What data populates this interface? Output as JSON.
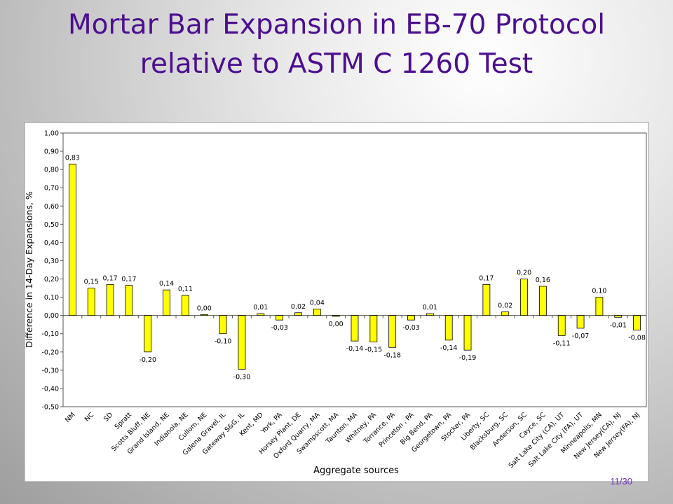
{
  "slide": {
    "title_line1": "Mortar Bar Expansion in EB-70 Protocol",
    "title_line2": "relative to ASTM C 1260 Test",
    "page_number": "11/30"
  },
  "chart_data": {
    "type": "bar",
    "title": "",
    "xlabel": "Aggregate sources",
    "ylabel": "Difference in 14-Day Expansions, %",
    "ylim": [
      -0.5,
      1.0
    ],
    "ytick_step": 0.1,
    "ytick_labels": [
      "-0,50",
      "-0,40",
      "-0,30",
      "-0,20",
      "-0,10",
      "0,00",
      "0,10",
      "0,20",
      "0,30",
      "0,40",
      "0,50",
      "0,60",
      "0,70",
      "0,80",
      "0,90",
      "1,00"
    ],
    "grid": false,
    "legend": "none",
    "bar_color": "#ffff00",
    "categories": [
      "NM",
      "NC",
      "SD",
      "Spratt",
      "Scotts Bluff, NE",
      "Grand Island, NE",
      "Indianola, NE",
      "Cullom, NE",
      "Galena Gravel, IL",
      "Gateway S&G, IL",
      "Kent, MD",
      "York, PA",
      "Horsey Plant, DE",
      "Oxford Quarry, MA",
      "Swampscott, MA",
      "Taunton, MA",
      "Whitney, PA",
      "Torrance, PA",
      "Princeton , PA",
      "Big Bend, PA",
      "Georgetown, PA",
      "Stocker, PA",
      "Liberty, SC",
      "Blacksburg, SC",
      "Anderson, SC",
      "Cayce, SC",
      "Salt Lake City (CA), UT",
      "Salt Lake City (FA), UT",
      "Minneapolis, MN",
      "New Jersey(CA), NJ",
      "New Jersey(FA), NJ"
    ],
    "values": [
      0.83,
      0.15,
      0.17,
      0.165,
      -0.2,
      0.14,
      0.11,
      0.005,
      -0.1,
      -0.295,
      0.01,
      -0.025,
      0.015,
      0.035,
      -0.005,
      -0.14,
      -0.145,
      -0.175,
      -0.025,
      0.01,
      -0.135,
      -0.19,
      0.17,
      0.02,
      0.2,
      0.16,
      -0.11,
      -0.07,
      0.1,
      -0.01,
      -0.08
    ],
    "data_labels": [
      "0,83",
      "0,15",
      "0,17",
      "0,17",
      "-0,20",
      "0,14",
      "0,11",
      "0,00",
      "-0,10",
      "-0,30",
      "0,01",
      "-0,03",
      "0,02",
      "0,04",
      "0,00",
      "-0,14",
      "-0,15",
      "-0,18",
      "-0,03",
      "0,01",
      "-0,14",
      "-0,19",
      "0,17",
      "0,02",
      "0,20",
      "0,16",
      "-0,11",
      "-0,07",
      "0,10",
      "-0,01",
      "-0,08"
    ]
  }
}
